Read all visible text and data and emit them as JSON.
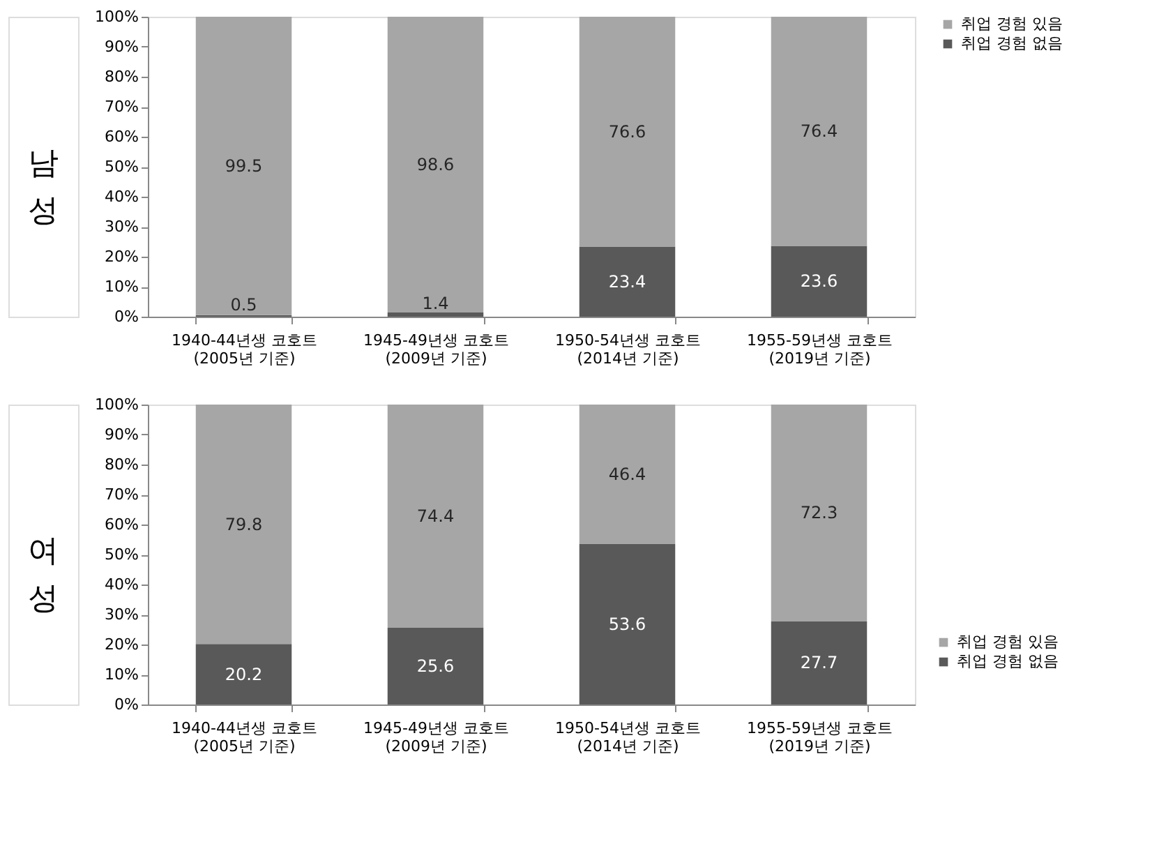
{
  "chart_data": [
    {
      "type": "bar",
      "title": "남성",
      "stacked": true,
      "data_labels": true,
      "legend": "right",
      "grid": false,
      "categories": [
        "1940-44년생 코호트\n(2005년 기준)",
        "1945-49년생 코호트\n(2009년 기준)",
        "1950-54년생 코호트\n(2014년 기준)",
        "1955-59년생 코호트\n(2019년 기준)"
      ],
      "series": [
        {
          "name": "취업 경험 없음",
          "color": "#595959",
          "values": [
            0.5,
            1.4,
            23.4,
            23.6
          ]
        },
        {
          "name": "취업 경험 있음",
          "color": "#a6a6a6",
          "values": [
            99.5,
            98.6,
            76.6,
            76.4
          ]
        }
      ],
      "ylim": [
        0,
        100
      ],
      "yticks": [
        {
          "value": 0,
          "label": "0%"
        },
        {
          "value": 10,
          "label": "10%"
        },
        {
          "value": 20,
          "label": "20%"
        },
        {
          "value": 30,
          "label": "30%"
        },
        {
          "value": 40,
          "label": "40%"
        },
        {
          "value": 50,
          "label": "50%"
        },
        {
          "value": 60,
          "label": "60%"
        },
        {
          "value": 70,
          "label": "70%"
        },
        {
          "value": 80,
          "label": "80%"
        },
        {
          "value": 90,
          "label": "90%"
        },
        {
          "value": 100,
          "label": "100%"
        }
      ]
    },
    {
      "type": "bar",
      "title": "여성",
      "stacked": true,
      "data_labels": true,
      "legend": "bottom right",
      "grid": false,
      "categories": [
        "1940-44년생 코호트\n(2005년 기준)",
        "1945-49년생 코호트\n(2009년 기준)",
        "1950-54년생 코호트\n(2014년 기준)",
        "1955-59년생 코호트\n(2019년 기준)"
      ],
      "series": [
        {
          "name": "취업 경험 없음",
          "color": "#595959",
          "values": [
            20.2,
            25.6,
            53.6,
            27.7
          ]
        },
        {
          "name": "취업 경험 있음",
          "color": "#a6a6a6",
          "values": [
            79.8,
            74.4,
            46.4,
            72.3
          ]
        }
      ],
      "ylim": [
        0,
        100
      ],
      "yticks": [
        {
          "value": 0,
          "label": "0%"
        },
        {
          "value": 10,
          "label": "10%"
        },
        {
          "value": 20,
          "label": "20%"
        },
        {
          "value": 30,
          "label": "30%"
        },
        {
          "value": 40,
          "label": "40%"
        },
        {
          "value": 50,
          "label": "50%"
        },
        {
          "value": 60,
          "label": "60%"
        },
        {
          "value": 70,
          "label": "70%"
        },
        {
          "value": 80,
          "label": "80%"
        },
        {
          "value": 90,
          "label": "90%"
        },
        {
          "value": 100,
          "label": "100%"
        }
      ]
    }
  ]
}
